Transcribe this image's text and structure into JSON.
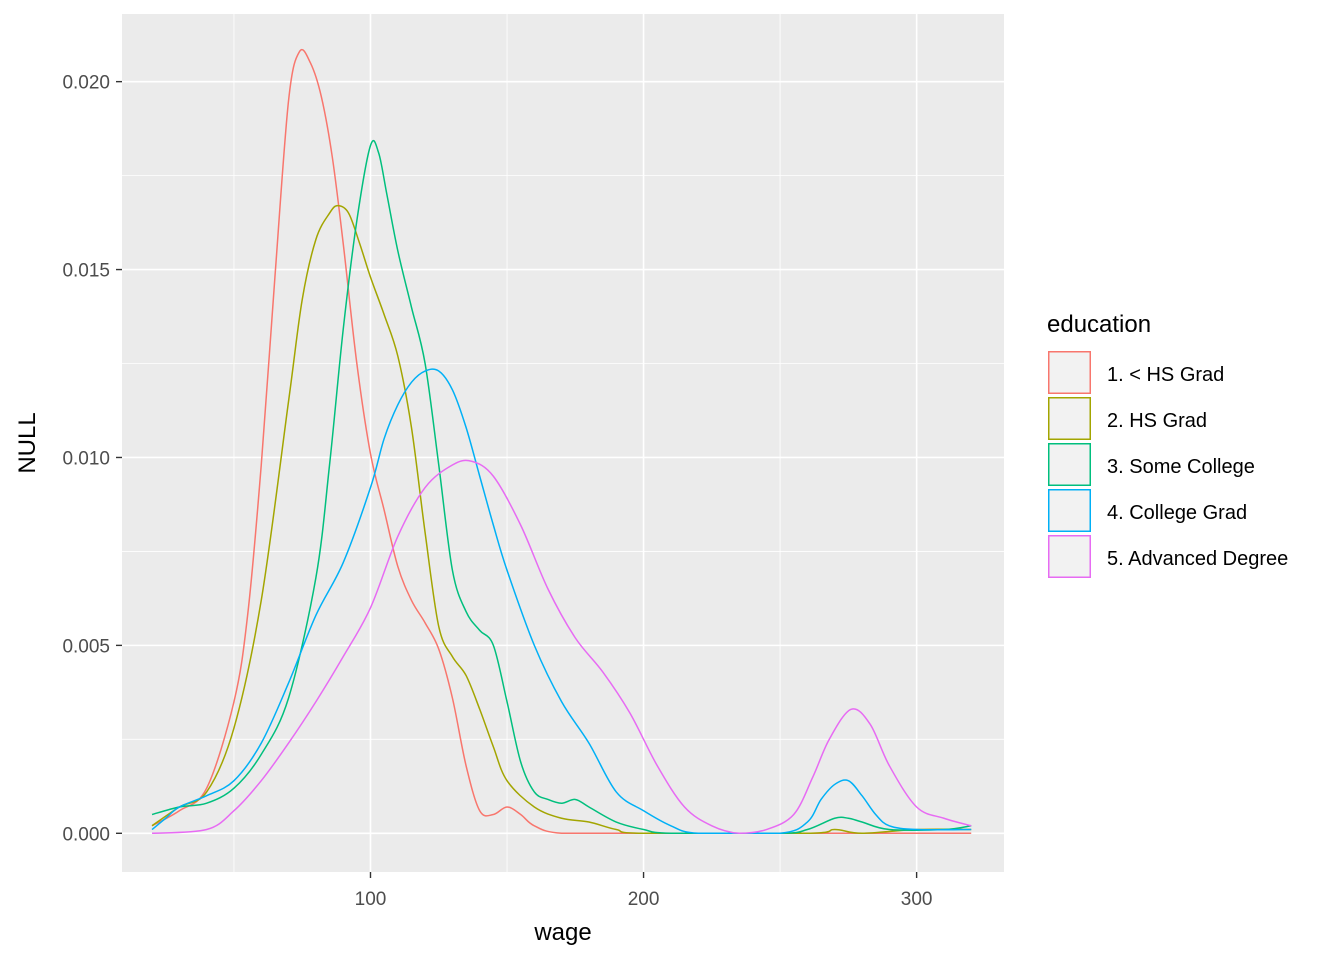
{
  "chart_data": {
    "type": "line",
    "xlabel": "wage",
    "ylabel": "NULL",
    "xlim": [
      9,
      332
    ],
    "ylim": [
      -0.00103,
      0.0218
    ],
    "x_ticks": [
      100,
      200,
      300
    ],
    "x_tick_labels": [
      "100",
      "200",
      "300"
    ],
    "y_ticks": [
      0,
      0.005,
      0.01,
      0.015,
      0.02
    ],
    "y_tick_labels": [
      "0.000",
      "0.005",
      "0.010",
      "0.015",
      "0.020"
    ],
    "grid": true,
    "legend_position": "right",
    "legend_title": "education",
    "series": [
      {
        "name": "1. < HS Grad",
        "color": "#F8766D",
        "points": [
          [
            20,
            0.0002
          ],
          [
            30,
            0.0006
          ],
          [
            40,
            0.0012
          ],
          [
            50,
            0.0035
          ],
          [
            55,
            0.0058
          ],
          [
            60,
            0.0098
          ],
          [
            65,
            0.0148
          ],
          [
            70,
            0.0195
          ],
          [
            74,
            0.0208
          ],
          [
            78,
            0.0205
          ],
          [
            82,
            0.0196
          ],
          [
            86,
            0.018
          ],
          [
            90,
            0.0157
          ],
          [
            95,
            0.0125
          ],
          [
            100,
            0.0101
          ],
          [
            105,
            0.0086
          ],
          [
            110,
            0.0071
          ],
          [
            115,
            0.0062
          ],
          [
            120,
            0.0056
          ],
          [
            125,
            0.0049
          ],
          [
            130,
            0.0036
          ],
          [
            135,
            0.0018
          ],
          [
            140,
            0.0006
          ],
          [
            145,
            0.0005
          ],
          [
            150,
            0.0007
          ],
          [
            155,
            0.0005
          ],
          [
            160,
            0.0002
          ],
          [
            170,
            0.0
          ],
          [
            200,
            0.0
          ],
          [
            300,
            0.0
          ],
          [
            320,
            0.0
          ]
        ]
      },
      {
        "name": "2. HS Grad",
        "color": "#A3A500",
        "points": [
          [
            20,
            0.0002
          ],
          [
            30,
            0.0007
          ],
          [
            40,
            0.0011
          ],
          [
            50,
            0.0028
          ],
          [
            60,
            0.0062
          ],
          [
            70,
            0.0115
          ],
          [
            75,
            0.0142
          ],
          [
            80,
            0.0158
          ],
          [
            85,
            0.0165
          ],
          [
            88,
            0.0167
          ],
          [
            92,
            0.0165
          ],
          [
            96,
            0.0157
          ],
          [
            100,
            0.0148
          ],
          [
            105,
            0.0138
          ],
          [
            110,
            0.0127
          ],
          [
            115,
            0.0108
          ],
          [
            120,
            0.008
          ],
          [
            125,
            0.0055
          ],
          [
            130,
            0.0047
          ],
          [
            135,
            0.0042
          ],
          [
            140,
            0.0033
          ],
          [
            145,
            0.0023
          ],
          [
            150,
            0.0014
          ],
          [
            160,
            0.0007
          ],
          [
            170,
            0.0004
          ],
          [
            180,
            0.0003
          ],
          [
            190,
            0.0001
          ],
          [
            200,
            0.0
          ],
          [
            260,
            0.0
          ],
          [
            270,
            0.0001
          ],
          [
            280,
            0.0
          ],
          [
            300,
            0.0001
          ],
          [
            320,
            0.0001
          ]
        ]
      },
      {
        "name": "3. Some College",
        "color": "#00BF7D",
        "points": [
          [
            20,
            0.0005
          ],
          [
            30,
            0.0007
          ],
          [
            40,
            0.0008
          ],
          [
            50,
            0.0012
          ],
          [
            60,
            0.0021
          ],
          [
            70,
            0.0036
          ],
          [
            80,
            0.0068
          ],
          [
            85,
            0.0098
          ],
          [
            90,
            0.0134
          ],
          [
            95,
            0.0163
          ],
          [
            100,
            0.0183
          ],
          [
            103,
            0.0181
          ],
          [
            106,
            0.017
          ],
          [
            110,
            0.0155
          ],
          [
            115,
            0.014
          ],
          [
            120,
            0.0125
          ],
          [
            125,
            0.0098
          ],
          [
            130,
            0.007
          ],
          [
            135,
            0.0059
          ],
          [
            140,
            0.0054
          ],
          [
            145,
            0.005
          ],
          [
            150,
            0.0035
          ],
          [
            155,
            0.0019
          ],
          [
            160,
            0.0011
          ],
          [
            165,
            0.0009
          ],
          [
            170,
            0.0008
          ],
          [
            175,
            0.0009
          ],
          [
            180,
            0.0007
          ],
          [
            190,
            0.0003
          ],
          [
            200,
            0.0001
          ],
          [
            210,
            0.0
          ],
          [
            250,
            0.0
          ],
          [
            260,
            0.0001
          ],
          [
            270,
            0.0004
          ],
          [
            275,
            0.0004
          ],
          [
            280,
            0.0003
          ],
          [
            290,
            0.0001
          ],
          [
            310,
            0.0001
          ],
          [
            320,
            0.0002
          ]
        ]
      },
      {
        "name": "4. College Grad",
        "color": "#00B0F6",
        "points": [
          [
            20,
            0.0001
          ],
          [
            25,
            0.0004
          ],
          [
            30,
            0.0007
          ],
          [
            40,
            0.001
          ],
          [
            50,
            0.0014
          ],
          [
            60,
            0.0024
          ],
          [
            70,
            0.004
          ],
          [
            80,
            0.0058
          ],
          [
            90,
            0.0072
          ],
          [
            100,
            0.0092
          ],
          [
            105,
            0.0105
          ],
          [
            110,
            0.0114
          ],
          [
            115,
            0.012
          ],
          [
            120,
            0.0123
          ],
          [
            125,
            0.0123
          ],
          [
            130,
            0.0118
          ],
          [
            135,
            0.0108
          ],
          [
            140,
            0.0095
          ],
          [
            145,
            0.0082
          ],
          [
            150,
            0.007
          ],
          [
            160,
            0.005
          ],
          [
            170,
            0.0035
          ],
          [
            180,
            0.0024
          ],
          [
            190,
            0.0011
          ],
          [
            200,
            0.0006
          ],
          [
            210,
            0.0002
          ],
          [
            220,
            0.0
          ],
          [
            250,
            0.0
          ],
          [
            260,
            0.0003
          ],
          [
            265,
            0.0009
          ],
          [
            270,
            0.0013
          ],
          [
            275,
            0.0014
          ],
          [
            280,
            0.001
          ],
          [
            285,
            0.0005
          ],
          [
            290,
            0.0002
          ],
          [
            300,
            0.0001
          ],
          [
            320,
            0.0001
          ]
        ]
      },
      {
        "name": "5. Advanced Degree",
        "color": "#E76BF3",
        "points": [
          [
            20,
            0.0
          ],
          [
            40,
            0.0001
          ],
          [
            50,
            0.0006
          ],
          [
            60,
            0.0014
          ],
          [
            70,
            0.0024
          ],
          [
            80,
            0.0035
          ],
          [
            90,
            0.0047
          ],
          [
            100,
            0.006
          ],
          [
            110,
            0.0079
          ],
          [
            120,
            0.0092
          ],
          [
            130,
            0.0098
          ],
          [
            137,
            0.0099
          ],
          [
            145,
            0.0095
          ],
          [
            155,
            0.0082
          ],
          [
            165,
            0.0065
          ],
          [
            175,
            0.0052
          ],
          [
            185,
            0.0043
          ],
          [
            195,
            0.0032
          ],
          [
            205,
            0.0018
          ],
          [
            215,
            0.0007
          ],
          [
            225,
            0.0002
          ],
          [
            235,
            0.0
          ],
          [
            245,
            0.0001
          ],
          [
            255,
            0.0005
          ],
          [
            262,
            0.0015
          ],
          [
            268,
            0.0025
          ],
          [
            276,
            0.0033
          ],
          [
            283,
            0.0029
          ],
          [
            290,
            0.0018
          ],
          [
            300,
            0.0007
          ],
          [
            310,
            0.0004
          ],
          [
            320,
            0.0002
          ]
        ]
      }
    ]
  }
}
